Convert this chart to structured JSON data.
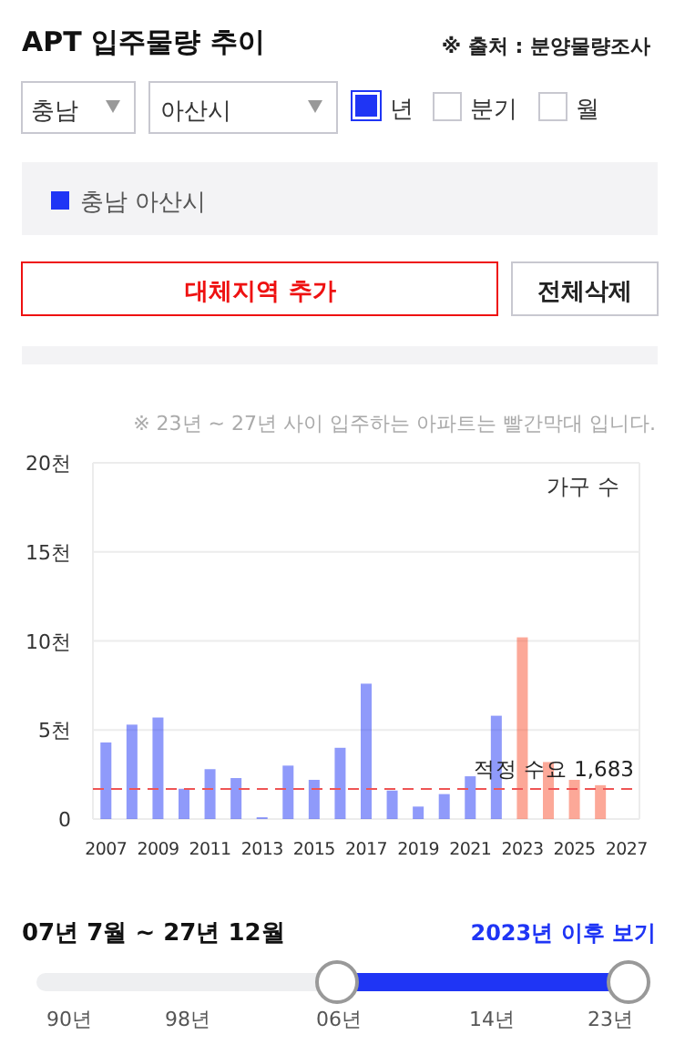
{
  "chart_data": {
    "type": "bar",
    "title": "APT 입주물량 추이",
    "ylabel": "가구 수",
    "annotations": [
      "※ 출처 : 분양물량조사",
      "충남",
      "아산시",
      "년",
      "분기",
      "월",
      "대체지역 추가",
      "전체삭제",
      "※ 23년 ~ 27년 사이 입주하는 아파트는 빨간막대 입니다.",
      "07년 7월 ~ 27년 12월",
      "2023년 이후 보기",
      "90년",
      "98년",
      "06년",
      "14년",
      "23년"
    ],
    "categories": [
      "2007",
      null,
      "2009",
      null,
      "2011",
      null,
      "2013",
      null,
      "2015",
      null,
      "2017",
      null,
      "2019",
      null,
      "2021",
      null,
      "2023",
      null,
      "2025",
      null,
      "2027"
    ],
    "series": [
      {
        "name": "충남 아산시",
        "color": "#1f35f5",
        "values": [
          4.3,
          5.3,
          5.7,
          1.7,
          2.8,
          2.3,
          0.1,
          3.0,
          2.2,
          4.0,
          7.6,
          1.6,
          0.7,
          1.4,
          2.4,
          5.8,
          null,
          null,
          null,
          null,
          null
        ]
      },
      {
        "color": "#fa5131",
        "values": [
          null,
          null,
          null,
          null,
          null,
          null,
          null,
          null,
          null,
          null,
          null,
          null,
          null,
          null,
          null,
          null,
          10.2,
          3.2,
          2.2,
          1.9,
          null
        ]
      }
    ],
    "ylim": [
      0,
      20
    ],
    "yticks": [
      0,
      {
        "value": 5,
        "label": "5천"
      },
      {
        "value": 10,
        "label": "10천"
      },
      {
        "value": 15,
        "label": "15천"
      },
      {
        "value": 20,
        "label": "20천"
      }
    ],
    "ref_lines": [
      {
        "axis": "y",
        "value": 1.683,
        "label": "적정 수요 1,683",
        "color": "#ee5555",
        "line_style": "dashed"
      }
    ],
    "grid": "y",
    "legend": "top"
  }
}
